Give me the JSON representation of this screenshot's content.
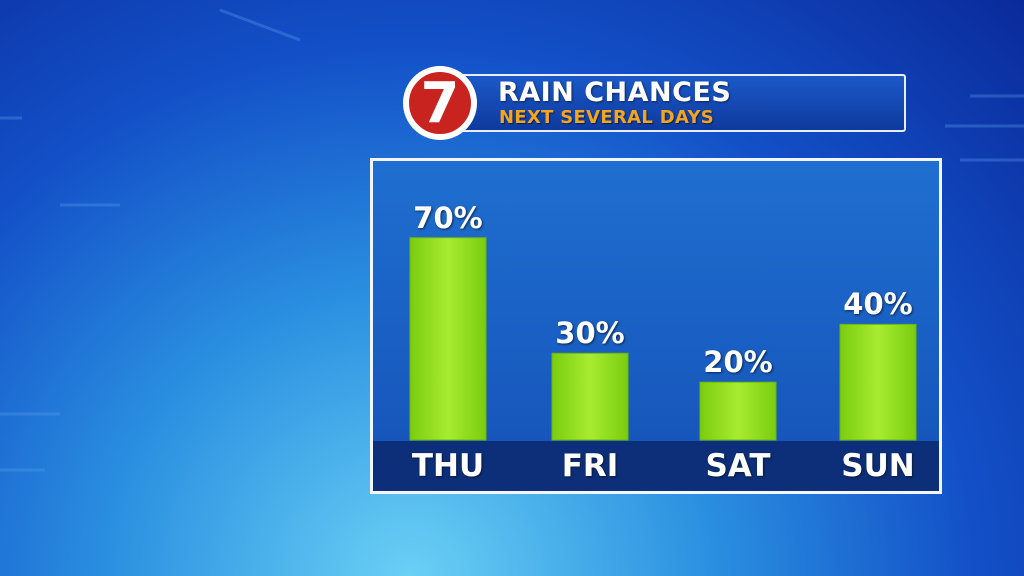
{
  "header": {
    "logo_text": "7",
    "title": "RAIN CHANCES",
    "subtitle": "NEXT SEVERAL DAYS"
  },
  "colors": {
    "bar": "#8fdf1a",
    "bar_light": "#b8f040",
    "title": "#ffffff",
    "subtitle": "#f4a520",
    "panel": "#1552b8",
    "category_band": "#0d2e78",
    "logo_red": "#c8231e"
  },
  "chart_data": {
    "type": "bar",
    "title": "RAIN CHANCES",
    "subtitle": "NEXT SEVERAL DAYS",
    "categories": [
      "THU",
      "FRI",
      "SAT",
      "SUN"
    ],
    "values": [
      70,
      30,
      20,
      40
    ],
    "value_labels": [
      "70%",
      "30%",
      "20%",
      "40%"
    ],
    "unit": "%",
    "ylim": [
      0,
      100
    ],
    "grid": false,
    "legend": "none"
  }
}
